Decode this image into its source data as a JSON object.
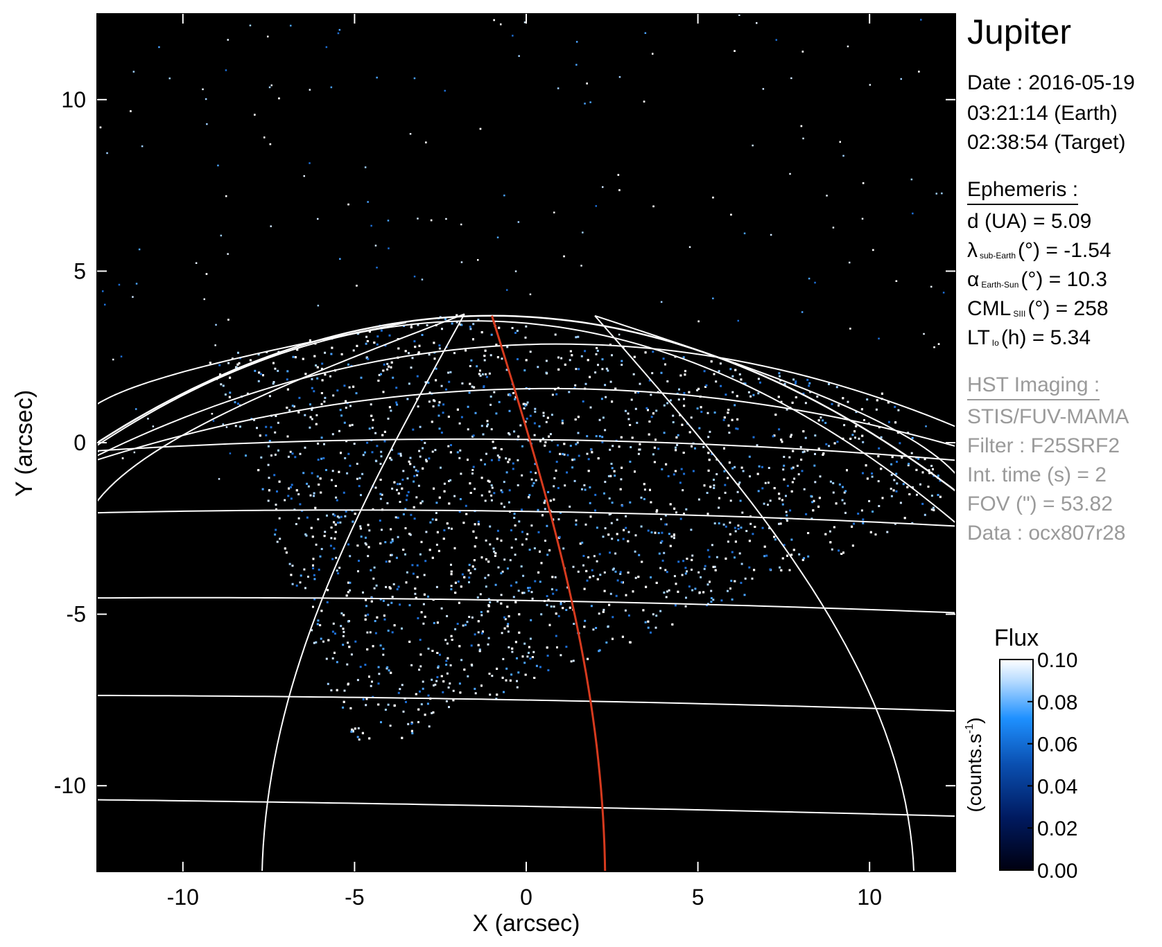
{
  "chart_data": {
    "type": "heatmap",
    "xlabel": "X (arcsec)",
    "ylabel": "Y (arcsec)",
    "xlim": [
      -12.5,
      12.5
    ],
    "ylim": [
      -12.5,
      12.5
    ],
    "xticks": [
      -10,
      -5,
      0,
      5,
      10
    ],
    "yticks": [
      -10,
      -5,
      0,
      5,
      10
    ],
    "colorbar": {
      "title": "Flux",
      "label": "(counts.s",
      "label_sup": "-1",
      "label_end": ")",
      "ticks": [
        "0.10",
        "0.08",
        "0.06",
        "0.04",
        "0.02",
        "0.00"
      ],
      "range": [
        0.0,
        0.1
      ],
      "colors": [
        "#000010",
        "#001a60",
        "#0a4fb0",
        "#1e90ff",
        "#b8dcff",
        "#ffffff"
      ]
    },
    "grid_color": "#ffffff",
    "cml_line_color": "#d63a1e",
    "background": "#000000"
  },
  "info": {
    "target": "Jupiter",
    "date_line": "Date : 2016-05-19",
    "time_earth": "03:21:14 (Earth)",
    "time_target": "02:38:54 (Target)",
    "ephemeris_header": "Ephemeris :",
    "eph_d": "d (UA)    = 5.09",
    "eph_lambda_sym": "λ",
    "eph_lambda_sub": "sub-Earth",
    "eph_lambda_rest": "(°) = -1.54",
    "eph_alpha_sym": "α",
    "eph_alpha_sub": "Earth-Sun",
    "eph_alpha_rest": "(°) = 10.3",
    "eph_cml_sym": "CML",
    "eph_cml_sub": "SIII",
    "eph_cml_rest": "(°) = 258",
    "eph_lt_sym": "LT",
    "eph_lt_sub": "Io",
    "eph_lt_rest": "(h) = 5.34",
    "hst_header": "HST Imaging :",
    "hst_instrument": "STIS/FUV-MAMA",
    "hst_filter": "Filter : F25SRF2",
    "hst_inttime": "Int. time (s) = 2",
    "hst_fov": "FOV (\") = 53.82",
    "hst_data": "Data : ocx807r28"
  }
}
